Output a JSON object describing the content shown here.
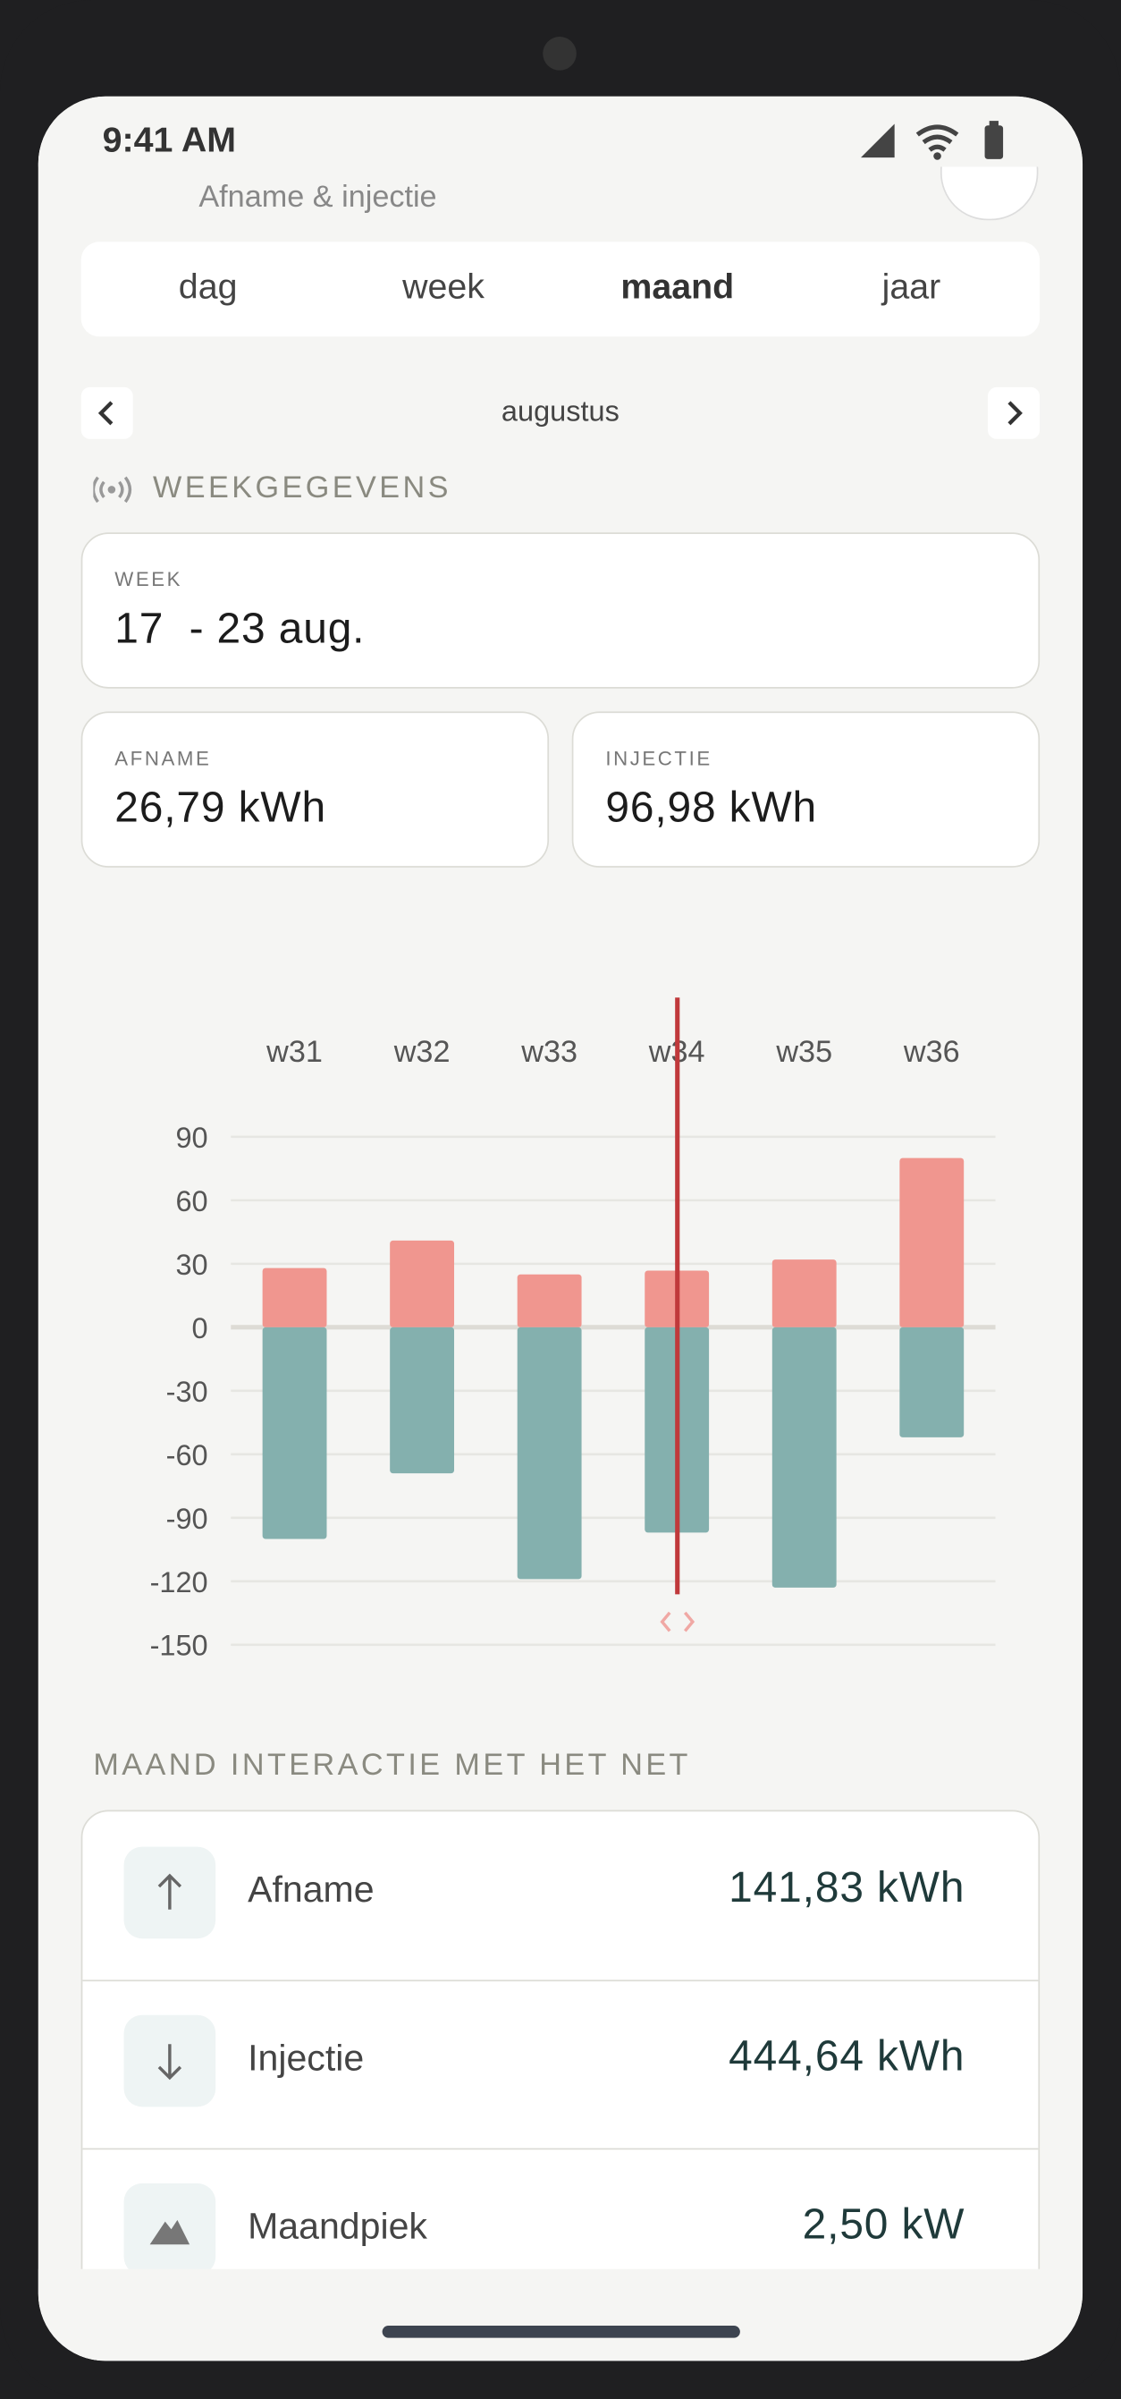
{
  "status_bar": {
    "time": "9:41 AM"
  },
  "header": {
    "subtitle": "Afname & injectie"
  },
  "tabs": [
    "dag",
    "week",
    "maand",
    "jaar"
  ],
  "period": "augustus",
  "section_title": "WEEKGEGEVENS",
  "week_card": {
    "label": "WEEK",
    "value": "17  - 23 aug."
  },
  "afname_card": {
    "label": "AFNAME",
    "value": "26,79 kWh"
  },
  "injectie_card": {
    "label": "INJECTIE",
    "value": "96,98 kWh"
  },
  "chart_data": {
    "type": "bar",
    "categories": [
      "w31",
      "w32",
      "w33",
      "w34",
      "w35",
      "w36"
    ],
    "series": [
      {
        "color": "#f0968f",
        "values": [
          28,
          41,
          25,
          26.79,
          32,
          80
        ]
      },
      {
        "color": "#84b0ae",
        "values": [
          -100,
          -69,
          -119,
          -96.98,
          -123,
          -52
        ]
      }
    ],
    "ylim": [
      -150,
      90
    ],
    "yticks": [
      90,
      60,
      30,
      0,
      -30,
      -60,
      -90,
      -120,
      -150
    ],
    "grid": true
  },
  "month_title": "MAAND INTERACTIE MET HET NET",
  "month_rows": [
    {
      "label": "Afname",
      "value": "141,83 kWh"
    },
    {
      "label": "Injectie",
      "value": "444,64 kWh"
    },
    {
      "label": "Maandpiek",
      "value": "2,50 kW"
    }
  ]
}
